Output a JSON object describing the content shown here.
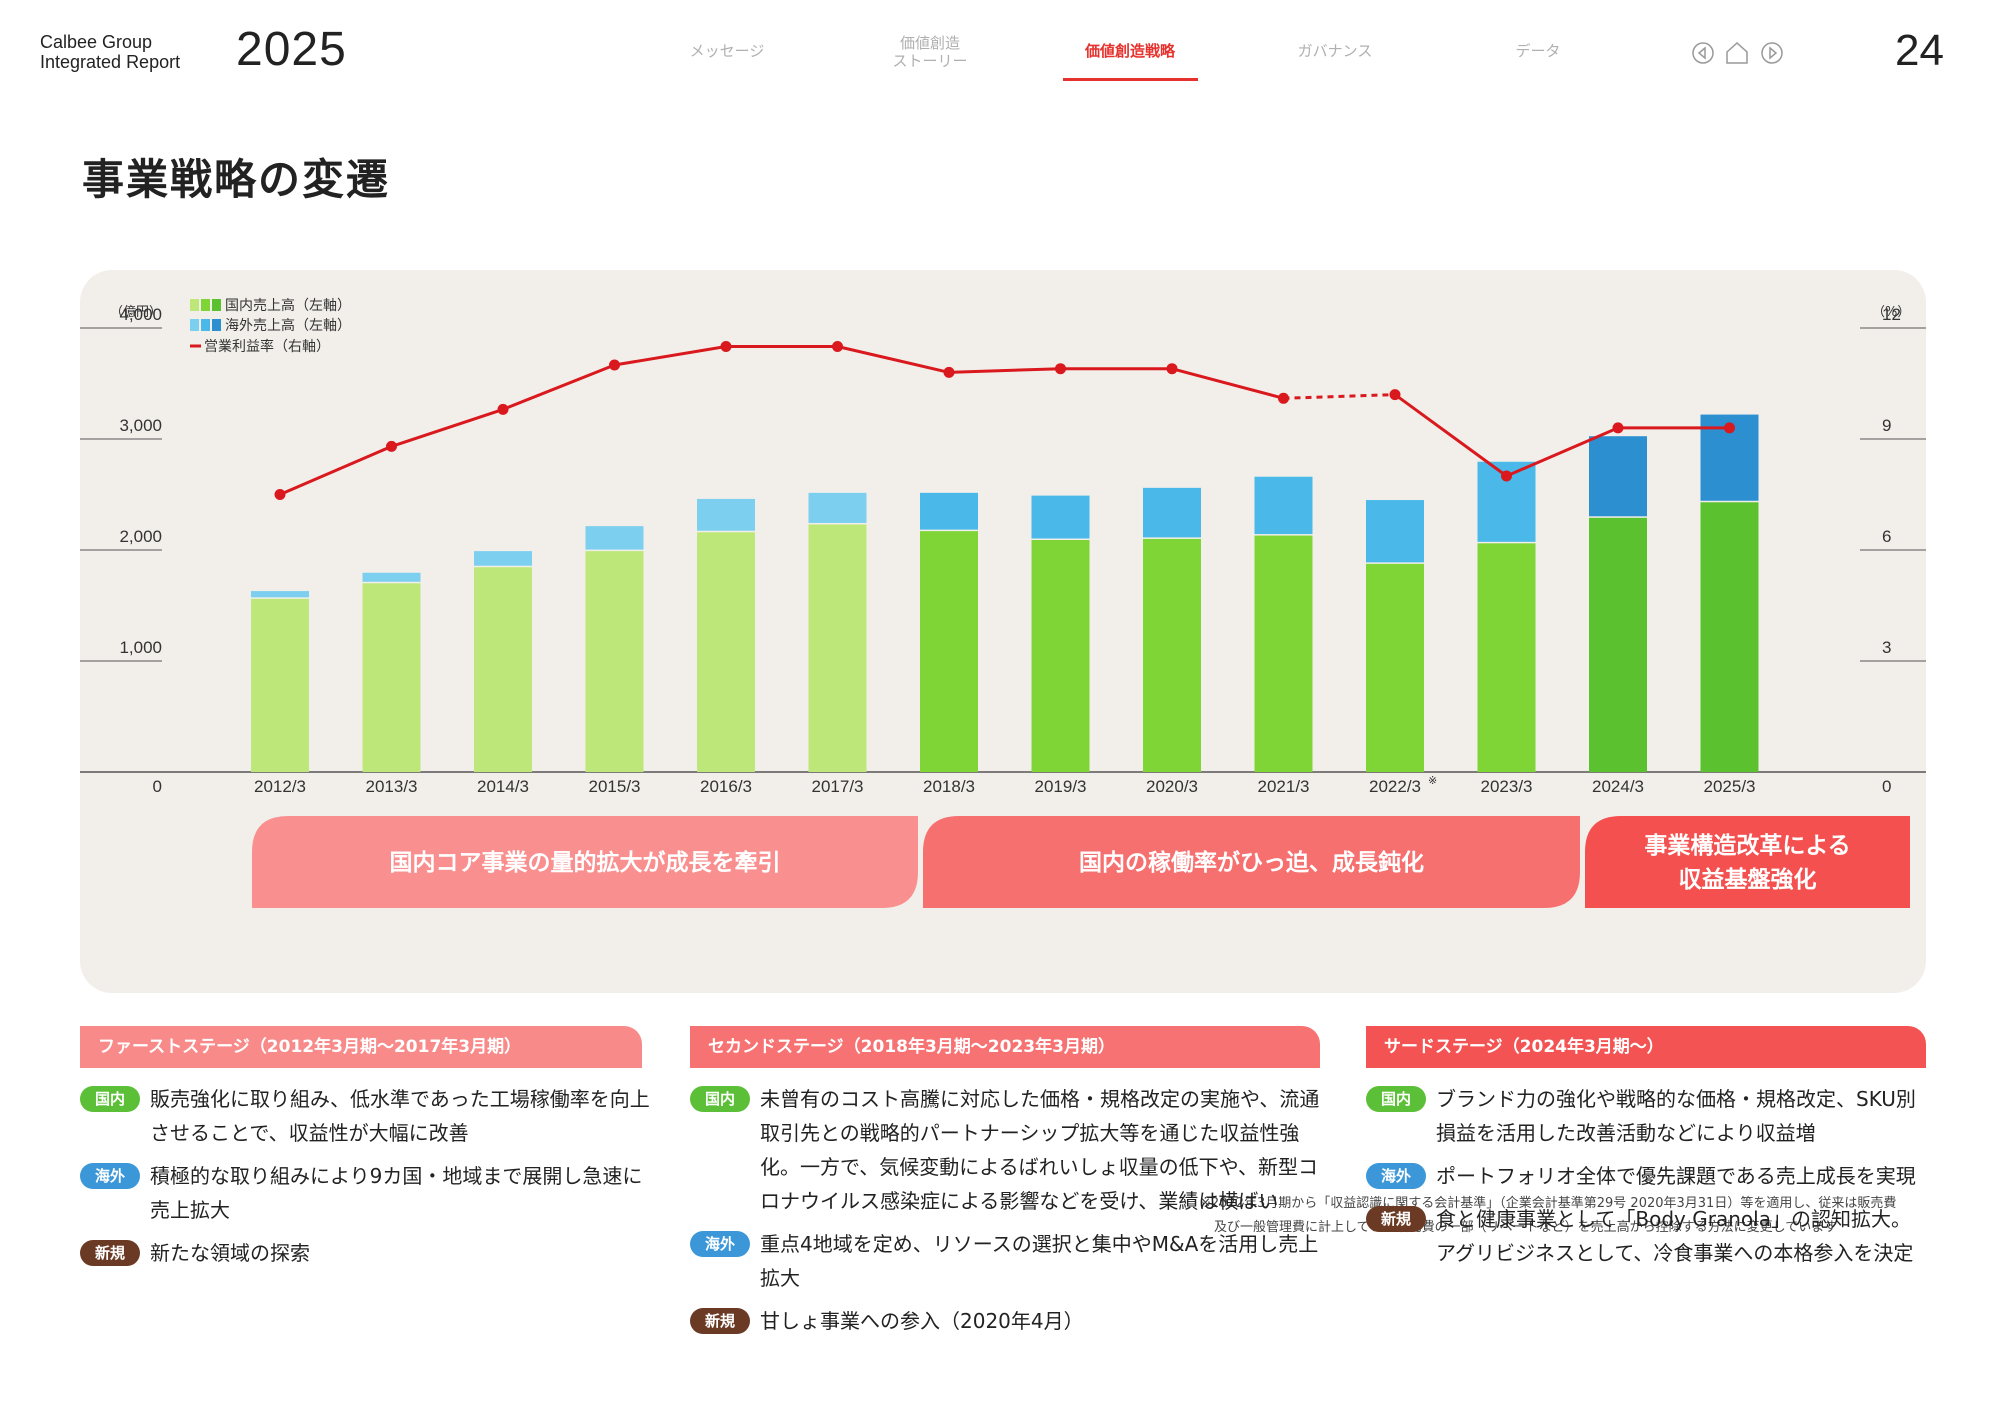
{
  "header": {
    "brand_line1": "Calbee Group",
    "brand_line2": "Integrated Report",
    "brand_year": "2025",
    "nav": [
      "メッセージ",
      "価値創造\nストーリー",
      "価値創造戦略",
      "ガバナンス",
      "データ"
    ],
    "active_nav": "価値創造戦略",
    "page_number": "24"
  },
  "title": "事業戦略の変遷",
  "colors": {
    "domestic_light": "#bde879",
    "domestic_mid": "#7fd436",
    "domestic_dark": "#5cc12f",
    "overseas_light": "#7dcff0",
    "overseas_mid": "#4ab8e8",
    "overseas_dark": "#2b8fd0",
    "line": "#d9191e",
    "accent": "#e5322e"
  },
  "chart_data": {
    "type": "bar+line",
    "categories": [
      "2012/3",
      "2013/3",
      "2014/3",
      "2015/3",
      "2016/3",
      "2017/3",
      "2018/3",
      "2019/3",
      "2020/3",
      "2021/3",
      "2022/3",
      "2023/3",
      "2024/3",
      "2025/3"
    ],
    "category_note_marker": "※",
    "category_note_index": 10,
    "series": [
      {
        "name": "国内売上高（左軸）",
        "type": "bar",
        "axis": "left",
        "values": [
          1560,
          1700,
          1845,
          1990,
          2160,
          2230,
          2170,
          2090,
          2100,
          2130,
          1875,
          2060,
          2290,
          2430
        ]
      },
      {
        "name": "海外売上高（左軸）",
        "type": "bar",
        "axis": "left",
        "values": [
          70,
          95,
          145,
          225,
          300,
          285,
          345,
          400,
          460,
          530,
          575,
          735,
          735,
          790
        ]
      },
      {
        "name": "営業利益率（右軸）",
        "type": "line",
        "axis": "right",
        "values": [
          7.5,
          8.8,
          9.8,
          11.0,
          11.5,
          11.5,
          10.8,
          10.9,
          10.9,
          10.1,
          10.2,
          8.0,
          9.3,
          9.3
        ],
        "dashed_segment": [
          9,
          10
        ]
      }
    ],
    "left_axis": {
      "unit": "（億円）",
      "ticks": [
        "0",
        "1,000",
        "2,000",
        "3,000",
        "4,000"
      ],
      "range": [
        0,
        4000
      ]
    },
    "right_axis": {
      "unit": "（%）",
      "ticks": [
        "0",
        "3",
        "6",
        "9",
        "12"
      ],
      "range": [
        0,
        12
      ]
    },
    "legend_position": "top-left",
    "legend": [
      "国内売上高（左軸）",
      "海外売上高（左軸）",
      "営業利益率（右軸）"
    ],
    "phases": [
      {
        "label": "国内コア事業の量的拡大が成長を牽引",
        "from": 0,
        "to": 5
      },
      {
        "label": "国内の稼働率がひっ迫、成長鈍化",
        "from": 6,
        "to": 11
      },
      {
        "label": "事業構造改革による\n収益基盤強化",
        "from": 12,
        "to": 13
      }
    ]
  },
  "note_lines": [
    "※2022年3月期から「収益認識に関する会計基準」（企業会計基準第29号 2020年3月31日）等を適用し、従来は販売費",
    "及び一般管理費に計上していた販売費の一部（リベートなど）を売上高から控除する方法に変更しています"
  ],
  "stages": [
    {
      "heading": "ファーストステージ（2012年3月期〜2017年3月期）",
      "items": [
        {
          "badge": "国内",
          "text": "販売強化に取り組み、低水準であった工場稼働率を向上させることで、収益性が大幅に改善"
        },
        {
          "badge": "海外",
          "text": "積極的な取り組みにより9カ国・地域まで展開し急速に売上拡大"
        },
        {
          "badge": "新規",
          "text": "新たな領域の探索"
        }
      ]
    },
    {
      "heading": "セカンドステージ（2018年3月期〜2023年3月期）",
      "items": [
        {
          "badge": "国内",
          "text": "未曾有のコスト高騰に対応した価格・規格改定の実施や、流通取引先との戦略的パートナーシップ拡大等を通じた収益性強化。一方で、気候変動によるばれいしょ収量の低下や、新型コロナウイルス感染症による影響などを受け、業績は横ばい"
        },
        {
          "badge": "海外",
          "text": "重点4地域を定め、リソースの選択と集中やM&Aを活用し売上拡大"
        },
        {
          "badge": "新規",
          "text": "甘しょ事業への参入（2020年4月）"
        }
      ]
    },
    {
      "heading": "サードステージ（2024年3月期〜）",
      "items": [
        {
          "badge": "国内",
          "text": "ブランド力の強化や戦略的な価格・規格改定、SKU別損益を活用した改善活動などにより収益増"
        },
        {
          "badge": "海外",
          "text": "ポートフォリオ全体で優先課題である売上成長を実現"
        },
        {
          "badge": "新規",
          "text": "食と健康事業として「Body Granola」の認知拡大。アグリビジネスとして、冷食事業への本格参入を決定"
        }
      ]
    }
  ]
}
